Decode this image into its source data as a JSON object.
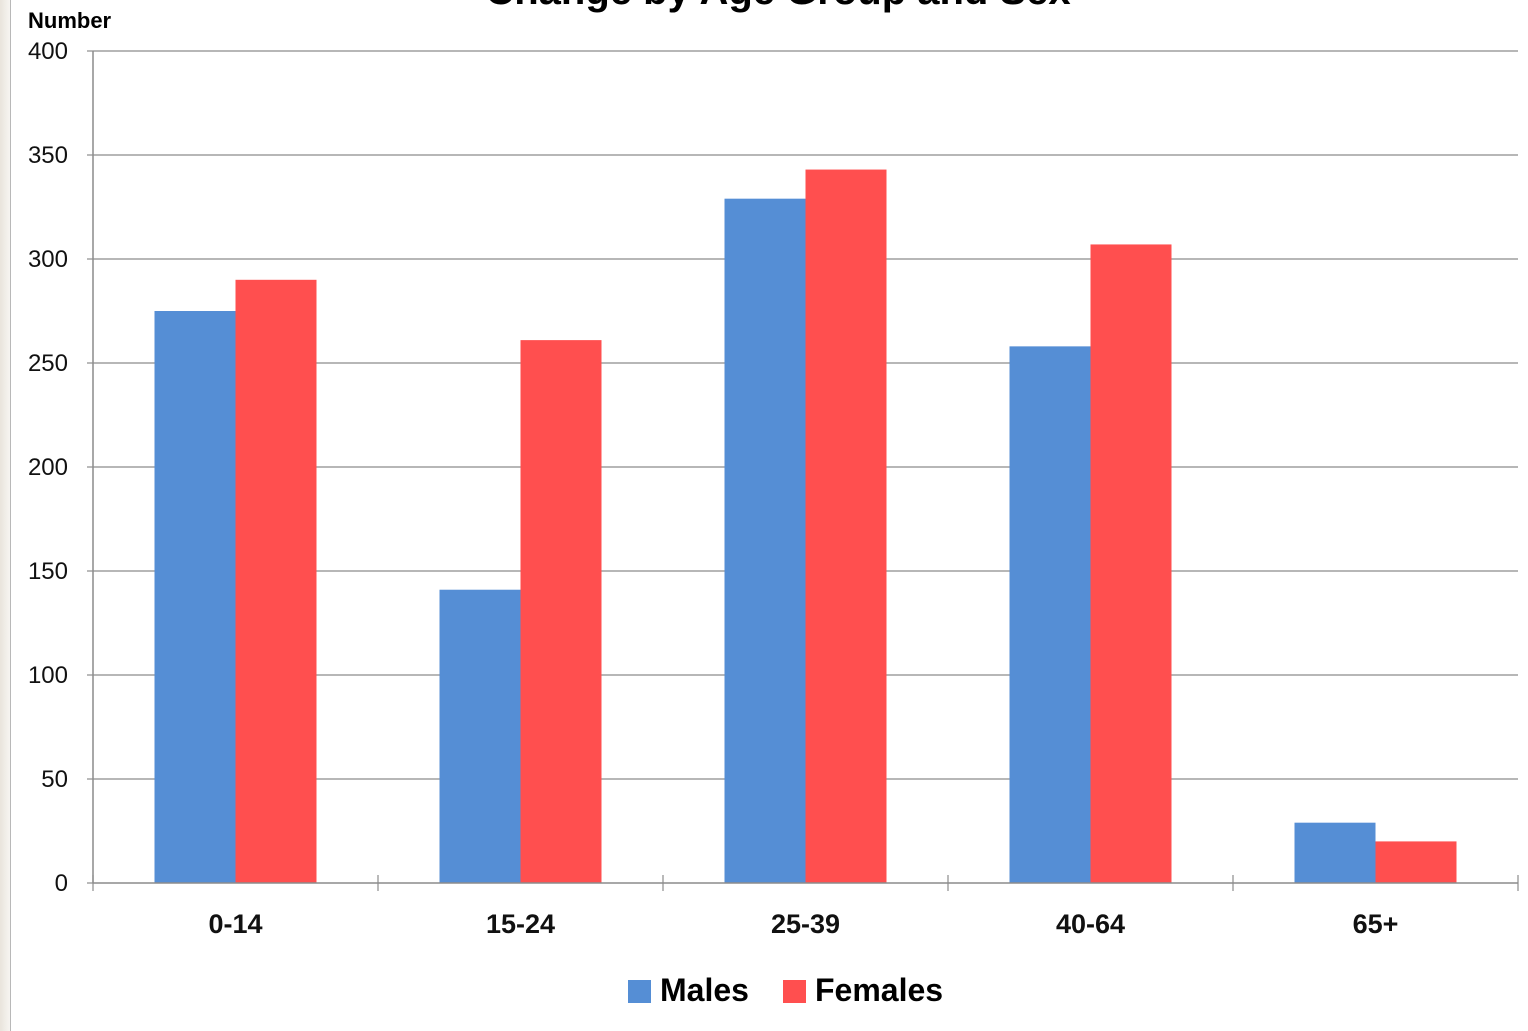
{
  "chart_data": {
    "type": "bar",
    "title": "Change by Age Group and Sex",
    "ylabel": "Number",
    "xlabel": "",
    "ylim": [
      0,
      400
    ],
    "yticks": [
      0,
      50,
      100,
      150,
      200,
      250,
      300,
      350,
      400
    ],
    "grid": true,
    "legend_position": "bottom",
    "categories": [
      "0-14",
      "15-24",
      "25-39",
      "40-64",
      "65+"
    ],
    "series": [
      {
        "name": "Males",
        "color": "#558ED5",
        "values": [
          275,
          141,
          329,
          258,
          29
        ]
      },
      {
        "name": "Females",
        "color": "#FF4F4F",
        "values": [
          290,
          261,
          343,
          307,
          20
        ]
      }
    ]
  }
}
